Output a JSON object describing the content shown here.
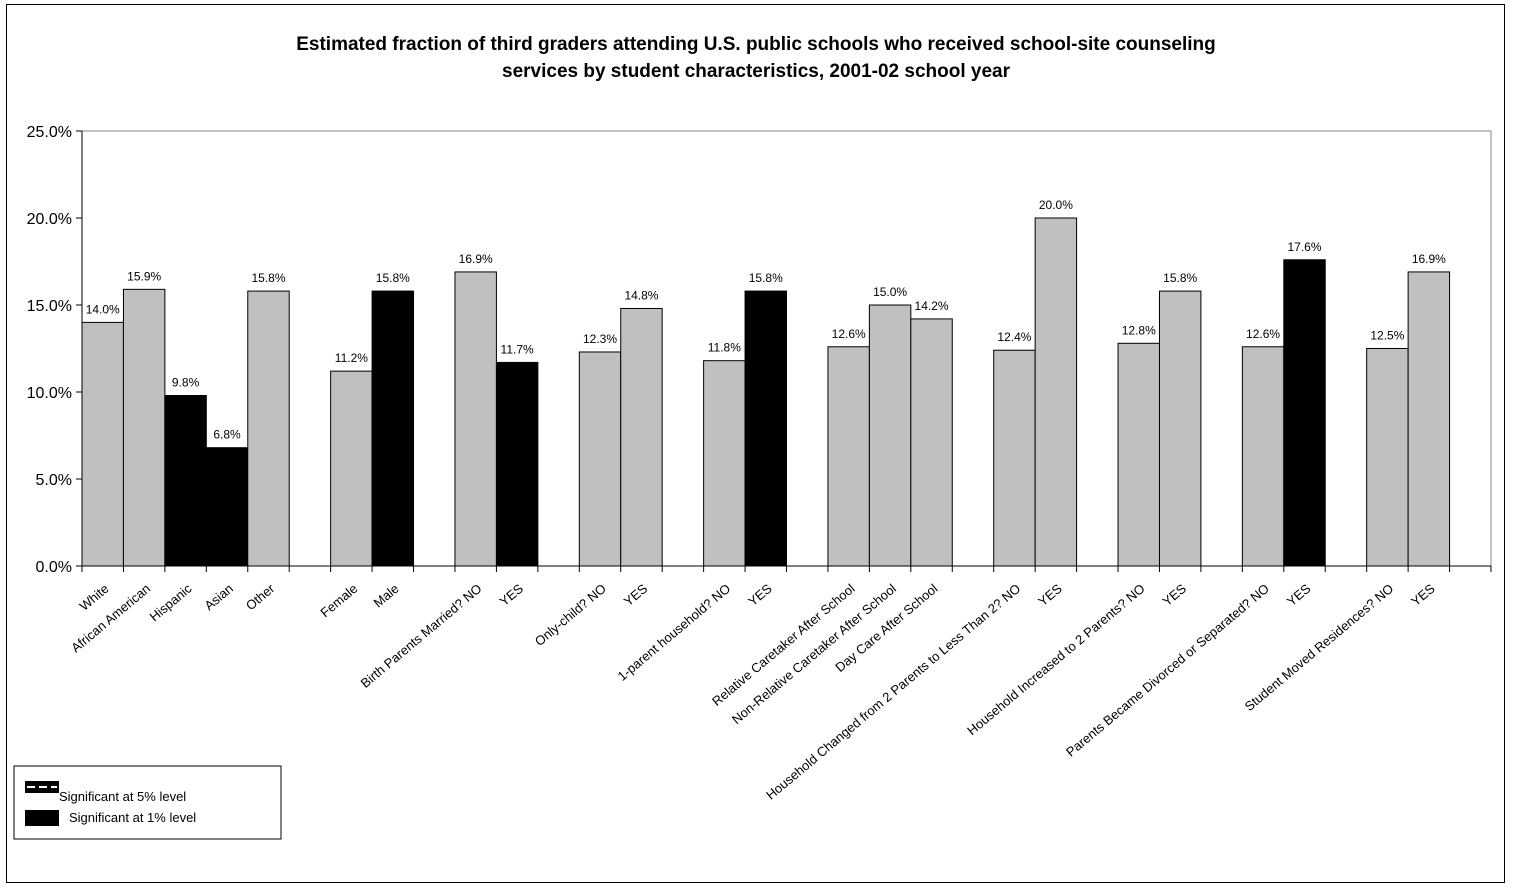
{
  "chart_data": {
    "type": "bar",
    "title_lines": [
      "Estimated fraction of third graders attending U.S. public schools who received school-site counseling",
      "services by student characteristics, 2001-02 school year"
    ],
    "ylim": [
      0,
      25
    ],
    "yticks": [
      0,
      5,
      10,
      15,
      20,
      25
    ],
    "ytick_labels": [
      "0.0%",
      "5.0%",
      "10.0%",
      "15.0%",
      "20.0%",
      "25.0%"
    ],
    "grid": false,
    "legend_position": "bottom-left",
    "legend": [
      {
        "label": "Significant at 5% level",
        "style": "dashed"
      },
      {
        "label": "Significant at 1% level",
        "style": "solid"
      }
    ],
    "colors": {
      "base": "#c0c0c0",
      "significant": "#000000",
      "axis": "#000000"
    },
    "bars": [
      {
        "category": "White",
        "value": 14.0,
        "label": "14.0%",
        "significance": "none",
        "slot": 0
      },
      {
        "category": "African American",
        "value": 15.9,
        "label": "15.9%",
        "significance": "none",
        "slot": 1
      },
      {
        "category": "Hispanic",
        "value": 9.8,
        "label": "9.8%",
        "significance": "1%",
        "slot": 2
      },
      {
        "category": "Asian",
        "value": 6.8,
        "label": "6.8%",
        "significance": "1%",
        "slot": 3
      },
      {
        "category": "Other",
        "value": 15.8,
        "label": "15.8%",
        "significance": "none",
        "slot": 4
      },
      {
        "category": "Female",
        "value": 11.2,
        "label": "11.2%",
        "significance": "none",
        "slot": 6
      },
      {
        "category": "Male",
        "value": 15.8,
        "label": "15.8%",
        "significance": "1%",
        "slot": 7
      },
      {
        "category": "Birth Parents Married?  NO",
        "value": 16.9,
        "label": "16.9%",
        "significance": "none",
        "slot": 9
      },
      {
        "category": "YES",
        "value": 11.7,
        "label": "11.7%",
        "significance": "1%",
        "slot": 10
      },
      {
        "category": "Only-child?  NO",
        "value": 12.3,
        "label": "12.3%",
        "significance": "none",
        "slot": 12
      },
      {
        "category": "YES",
        "value": 14.8,
        "label": "14.8%",
        "significance": "none",
        "slot": 13
      },
      {
        "category": "1-parent household?  NO",
        "value": 11.8,
        "label": "11.8%",
        "significance": "none",
        "slot": 15
      },
      {
        "category": "YES",
        "value": 15.8,
        "label": "15.8%",
        "significance": "1%",
        "slot": 16
      },
      {
        "category": "Relative Caretaker After School",
        "value": 12.6,
        "label": "12.6%",
        "significance": "none",
        "slot": 18
      },
      {
        "category": "Non-Relative Caretaker After School",
        "value": 15.0,
        "label": "15.0%",
        "significance": "none",
        "slot": 19
      },
      {
        "category": "Day Care After School",
        "value": 14.2,
        "label": "14.2%",
        "significance": "none",
        "slot": 20
      },
      {
        "category": "Household Changed from 2 Parents to Less Than 2?  NO",
        "value": 12.4,
        "label": "12.4%",
        "significance": "none",
        "slot": 22
      },
      {
        "category": "YES",
        "value": 20.0,
        "label": "20.0%",
        "significance": "none",
        "slot": 23
      },
      {
        "category": "Household Increased to 2 Parents?  NO",
        "value": 12.8,
        "label": "12.8%",
        "significance": "none",
        "slot": 25
      },
      {
        "category": "YES",
        "value": 15.8,
        "label": "15.8%",
        "significance": "none",
        "slot": 26
      },
      {
        "category": "Parents Became Divorced or Separated?  NO",
        "value": 12.6,
        "label": "12.6%",
        "significance": "none",
        "slot": 28
      },
      {
        "category": "YES",
        "value": 17.6,
        "label": "17.6%",
        "significance": "1%",
        "slot": 29
      },
      {
        "category": "Student Moved Residences?  NO",
        "value": 12.5,
        "label": "12.5%",
        "significance": "none",
        "slot": 31
      },
      {
        "category": "YES",
        "value": 16.9,
        "label": "16.9%",
        "significance": "none",
        "slot": 32
      }
    ],
    "total_slots": 34
  }
}
